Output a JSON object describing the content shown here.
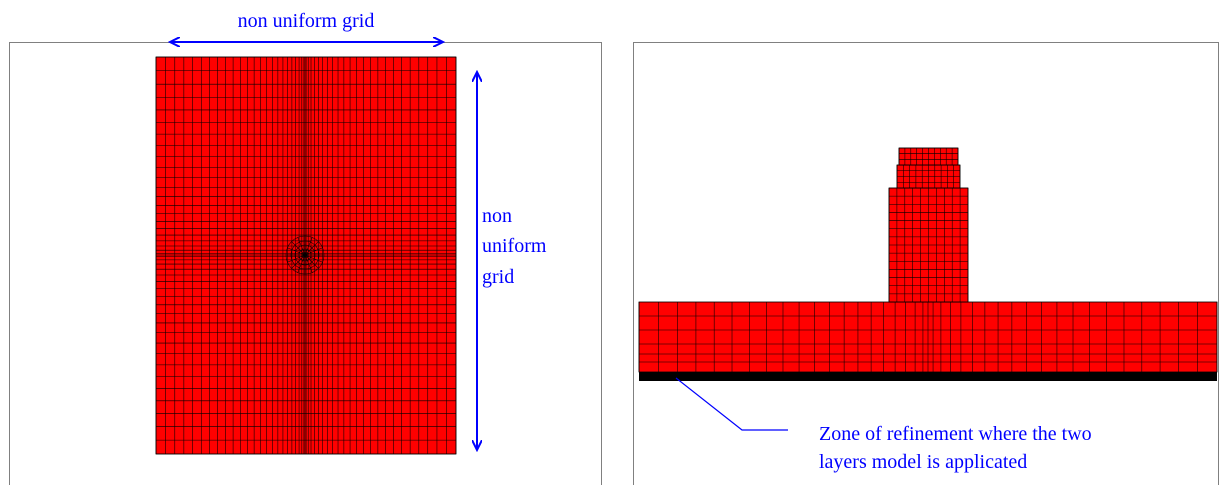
{
  "left_panel": {
    "top_label": "non uniform grid",
    "side_label_lines": [
      "non",
      "uniform",
      "grid"
    ]
  },
  "right_panel": {
    "callout_lines": [
      "Zone of refinement where the two",
      "layers model is applicated"
    ]
  },
  "colors": {
    "mesh_fill": "#ff0000",
    "mesh_lines": "#000000",
    "annotation": "#0000ff",
    "frame": "#808080",
    "refinement_zone": "#000000"
  }
}
